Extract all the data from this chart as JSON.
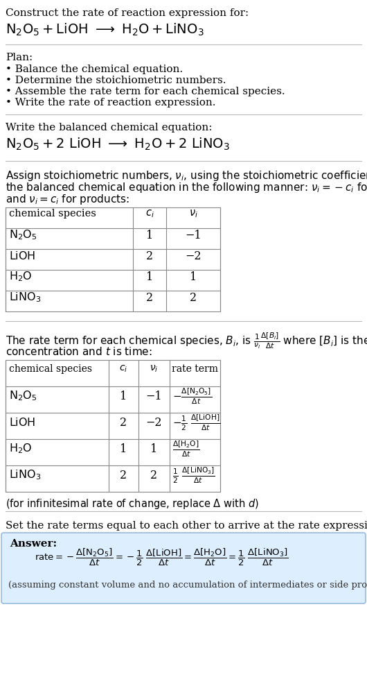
{
  "title_line1": "Construct the rate of reaction expression for:",
  "plan_header": "Plan:",
  "plan_items": [
    "• Balance the chemical equation.",
    "• Determine the stoichiometric numbers.",
    "• Assemble the rate term for each chemical species.",
    "• Write the rate of reaction expression."
  ],
  "balanced_header": "Write the balanced chemical equation:",
  "table1_headers": [
    "chemical species",
    "c_i",
    "v_i"
  ],
  "table1_rows": [
    [
      "N₂O₅",
      "1",
      "−1"
    ],
    [
      "LiOH",
      "2",
      "−2"
    ],
    [
      "H₂O",
      "1",
      "1"
    ],
    [
      "LiNO₃",
      "2",
      "2"
    ]
  ],
  "table2_headers": [
    "chemical species",
    "c_i",
    "v_i",
    "rate term"
  ],
  "table2_rows": [
    [
      "N₂O₅",
      "1",
      "−1"
    ],
    [
      "LiOH",
      "2",
      "−2"
    ],
    [
      "H₂O",
      "1",
      "1"
    ],
    [
      "LiNO₃",
      "2",
      "2"
    ]
  ],
  "infinitesimal_note": "(for infinitesimal rate of change, replace Δ with d)",
  "set_equal_text": "Set the rate terms equal to each other to arrive at the rate expression:",
  "answer_label": "Answer:",
  "answer_note": "(assuming constant volume and no accumulation of intermediates or side products)",
  "bg_color": "#ffffff",
  "answer_bg_color": "#ddeeff",
  "answer_border_color": "#99bbdd"
}
